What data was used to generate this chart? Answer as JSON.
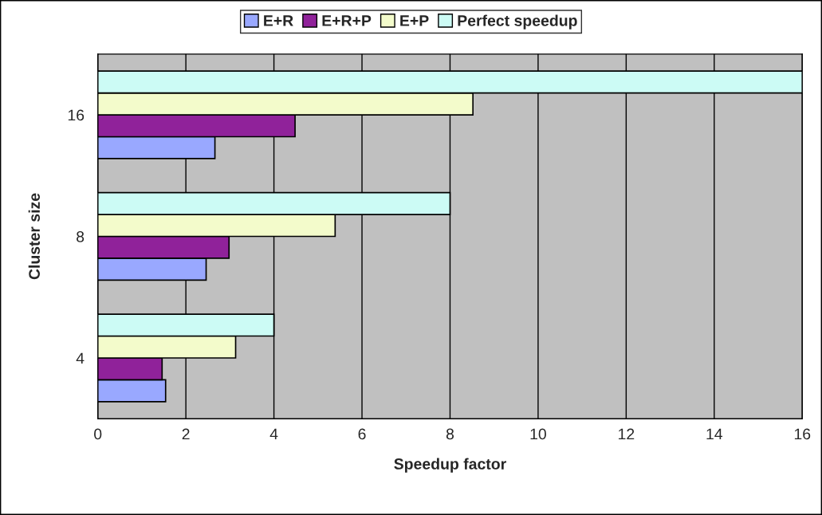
{
  "chart_data": {
    "type": "bar",
    "orientation": "horizontal",
    "xlabel": "Speedup factor",
    "ylabel": "Cluster size",
    "categories": [
      "16",
      "8",
      "4"
    ],
    "series": [
      {
        "name": "E+R",
        "color": "#99a8ff",
        "values": [
          2.66,
          2.46,
          1.54
        ]
      },
      {
        "name": "E+R+P",
        "color": "#90229a",
        "values": [
          4.48,
          2.98,
          1.46
        ]
      },
      {
        "name": "E+P",
        "color": "#f3fbcb",
        "values": [
          8.52,
          5.39,
          3.13
        ]
      },
      {
        "name": "Perfect speedup",
        "color": "#ccfbf5",
        "values": [
          16,
          8,
          4
        ]
      }
    ],
    "xlim": [
      0,
      16
    ],
    "xticks": [
      0,
      2,
      4,
      6,
      8,
      10,
      12,
      14,
      16
    ],
    "grid": "x",
    "legend": "top"
  }
}
